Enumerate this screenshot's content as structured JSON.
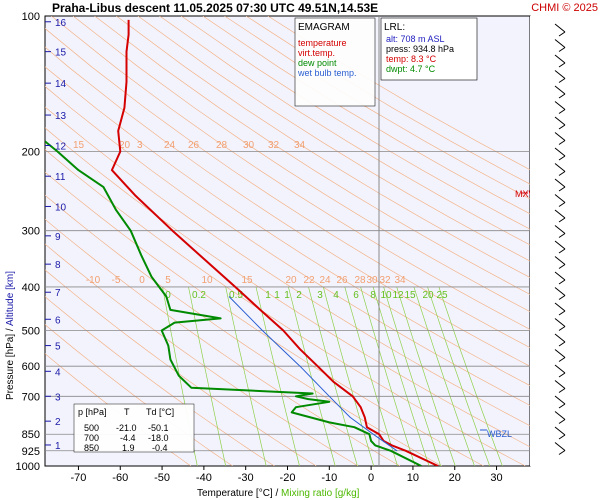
{
  "header": {
    "title": "Praha-Libus   descent   11.05.2025 07:30 UTC  49.51N,14.53E",
    "copyright": "CHMI © 2025",
    "emagram_label": "EMAGRAM"
  },
  "legend": {
    "items": [
      {
        "label": "temperature",
        "color": "#d40000"
      },
      {
        "label": "virt.temp.",
        "color": "#d40000"
      },
      {
        "label": "dew point",
        "color": "#008a00"
      },
      {
        "label": "wet bulb temp.",
        "color": "#2a5fd0"
      }
    ]
  },
  "lrl_box": {
    "title": "LRL:",
    "lines": [
      {
        "text": "alt: 708 m ASL",
        "color": "#2020c0"
      },
      {
        "text": "press: 934.8 hPa",
        "color": "#000000"
      },
      {
        "text": "temp: 8.3 °C",
        "color": "#d40000"
      },
      {
        "text": "dwpt: 4.7 °C",
        "color": "#008a00"
      }
    ]
  },
  "levels_table": {
    "headers": [
      "p [hPa]",
      "T",
      "Td [°C]"
    ],
    "rows": [
      [
        "500",
        "-21.0",
        "-50.1"
      ],
      [
        "700",
        "-4.4",
        "-18.0"
      ],
      [
        "850",
        "1.9",
        "-0.4"
      ]
    ]
  },
  "markers": {
    "mxws": "MXWS",
    "wbzl": "WBZL"
  },
  "axes": {
    "ylabel_pressure": "Pressure [hPa]",
    "ylabel_sep": " /  ",
    "ylabel_altitude": "Altitude [km]",
    "xlabel_temp": "Temperature [°C]",
    "xlabel_sep": " /  ",
    "xlabel_mix": "Mixing ratio [g/kg]"
  },
  "chart_data": {
    "type": "line",
    "pressure_ticks": [
      "100",
      "200",
      "300",
      "400",
      "500",
      "600",
      "700",
      "850",
      "925",
      "1000"
    ],
    "pressure_tick_values": [
      100,
      200,
      300,
      400,
      500,
      600,
      700,
      850,
      925,
      1000
    ],
    "temperature_ticks": [
      "-70",
      "-60",
      "-50",
      "-40",
      "-30",
      "-20",
      "-10",
      "0",
      "10",
      "20",
      "30"
    ],
    "temperature_tick_values": [
      -70,
      -60,
      -50,
      -40,
      -30,
      -20,
      -10,
      0,
      10,
      20,
      30
    ],
    "xlim": [
      -78,
      38
    ],
    "ylim": [
      100,
      1000
    ],
    "y_scale": "log",
    "altitude_ticks": [
      "1",
      "2",
      "3",
      "4",
      "5",
      "6",
      "7",
      "8",
      "9",
      "10",
      "11",
      "12",
      "13",
      "14",
      "15",
      "16"
    ],
    "altitude_pressures": [
      898,
      795,
      700,
      616,
      540,
      472,
      411,
      356,
      308,
      265,
      227,
      194,
      166,
      141,
      120,
      103
    ],
    "dry_adiabat_labels": [
      {
        "text": "15",
        "p": 200
      },
      {
        "text": "20",
        "p": 200
      },
      {
        "text": "24",
        "p": 200
      },
      {
        "text": "26",
        "p": 200
      },
      {
        "text": "28",
        "p": 200
      },
      {
        "text": "30",
        "p": 200
      },
      {
        "text": "32",
        "p": 200
      },
      {
        "text": "34",
        "p": 200
      }
    ],
    "moist_adiabat_labels": [
      "-10",
      "-5",
      "0",
      "5",
      "10",
      "15",
      "20",
      "22",
      "24",
      "26",
      "28",
      "30",
      "32",
      "34"
    ],
    "mixing_ratio_labels": [
      "0",
      "0.2",
      "0.5",
      "1",
      "1",
      "1",
      "2",
      "3",
      "4",
      "6",
      "8",
      "10",
      "12",
      "15",
      "20",
      "25"
    ],
    "series": [
      {
        "name": "temperature",
        "color": "#d40000",
        "points": [
          {
            "p": 1000,
            "t": 16
          },
          {
            "p": 925,
            "t": 8.3
          },
          {
            "p": 900,
            "t": 5.0
          },
          {
            "p": 880,
            "t": 3.0
          },
          {
            "p": 850,
            "t": 1.9
          },
          {
            "p": 820,
            "t": -1.0
          },
          {
            "p": 780,
            "t": -1.5
          },
          {
            "p": 740,
            "t": -2.5
          },
          {
            "p": 700,
            "t": -4.4
          },
          {
            "p": 650,
            "t": -9.0
          },
          {
            "p": 600,
            "t": -12.8
          },
          {
            "p": 550,
            "t": -17.0
          },
          {
            "p": 500,
            "t": -21.0
          },
          {
            "p": 450,
            "t": -26.5
          },
          {
            "p": 400,
            "t": -32.5
          },
          {
            "p": 350,
            "t": -39.5
          },
          {
            "p": 300,
            "t": -47.5
          },
          {
            "p": 250,
            "t": -56.5
          },
          {
            "p": 220,
            "t": -62.0
          },
          {
            "p": 200,
            "t": -60.0
          },
          {
            "p": 180,
            "t": -60.5
          },
          {
            "p": 160,
            "t": -59.0
          },
          {
            "p": 140,
            "t": -58.5
          },
          {
            "p": 120,
            "t": -58.5
          },
          {
            "p": 110,
            "t": -58.0
          },
          {
            "p": 102,
            "t": -58.0
          }
        ]
      },
      {
        "name": "dew point",
        "color": "#008a00",
        "points": [
          {
            "p": 1000,
            "t": 12
          },
          {
            "p": 925,
            "t": 4.7
          },
          {
            "p": 900,
            "t": 1.0
          },
          {
            "p": 880,
            "t": 0.0
          },
          {
            "p": 850,
            "t": -0.4
          },
          {
            "p": 820,
            "t": -4.0
          },
          {
            "p": 800,
            "t": -10.0
          },
          {
            "p": 780,
            "t": -14.5
          },
          {
            "p": 760,
            "t": -19.0
          },
          {
            "p": 740,
            "t": -18.0
          },
          {
            "p": 720,
            "t": -10.0
          },
          {
            "p": 710,
            "t": -15.0
          },
          {
            "p": 700,
            "t": -18.0
          },
          {
            "p": 690,
            "t": -14.0
          },
          {
            "p": 670,
            "t": -43.0
          },
          {
            "p": 630,
            "t": -46.0
          },
          {
            "p": 580,
            "t": -48.0
          },
          {
            "p": 540,
            "t": -48.5
          },
          {
            "p": 500,
            "t": -50.1
          },
          {
            "p": 480,
            "t": -47.0
          },
          {
            "p": 470,
            "t": -36.0
          },
          {
            "p": 450,
            "t": -48.0
          },
          {
            "p": 420,
            "t": -49.0
          },
          {
            "p": 380,
            "t": -52.5
          },
          {
            "p": 340,
            "t": -55.0
          },
          {
            "p": 300,
            "t": -57.5
          },
          {
            "p": 270,
            "t": -61.0
          },
          {
            "p": 240,
            "t": -64.0
          },
          {
            "p": 220,
            "t": -70.0
          },
          {
            "p": 200,
            "t": -75.0
          },
          {
            "p": 190,
            "t": -78.0
          }
        ]
      },
      {
        "name": "wet bulb temp.",
        "color": "#2a5fd0",
        "points": [
          {
            "p": 925,
            "t": 6.2
          },
          {
            "p": 850,
            "t": 0.5
          },
          {
            "p": 780,
            "t": -5.0
          },
          {
            "p": 700,
            "t": -10.0
          },
          {
            "p": 600,
            "t": -17.0
          },
          {
            "p": 500,
            "t": -26.0
          },
          {
            "p": 420,
            "t": -34.0
          }
        ]
      }
    ]
  }
}
